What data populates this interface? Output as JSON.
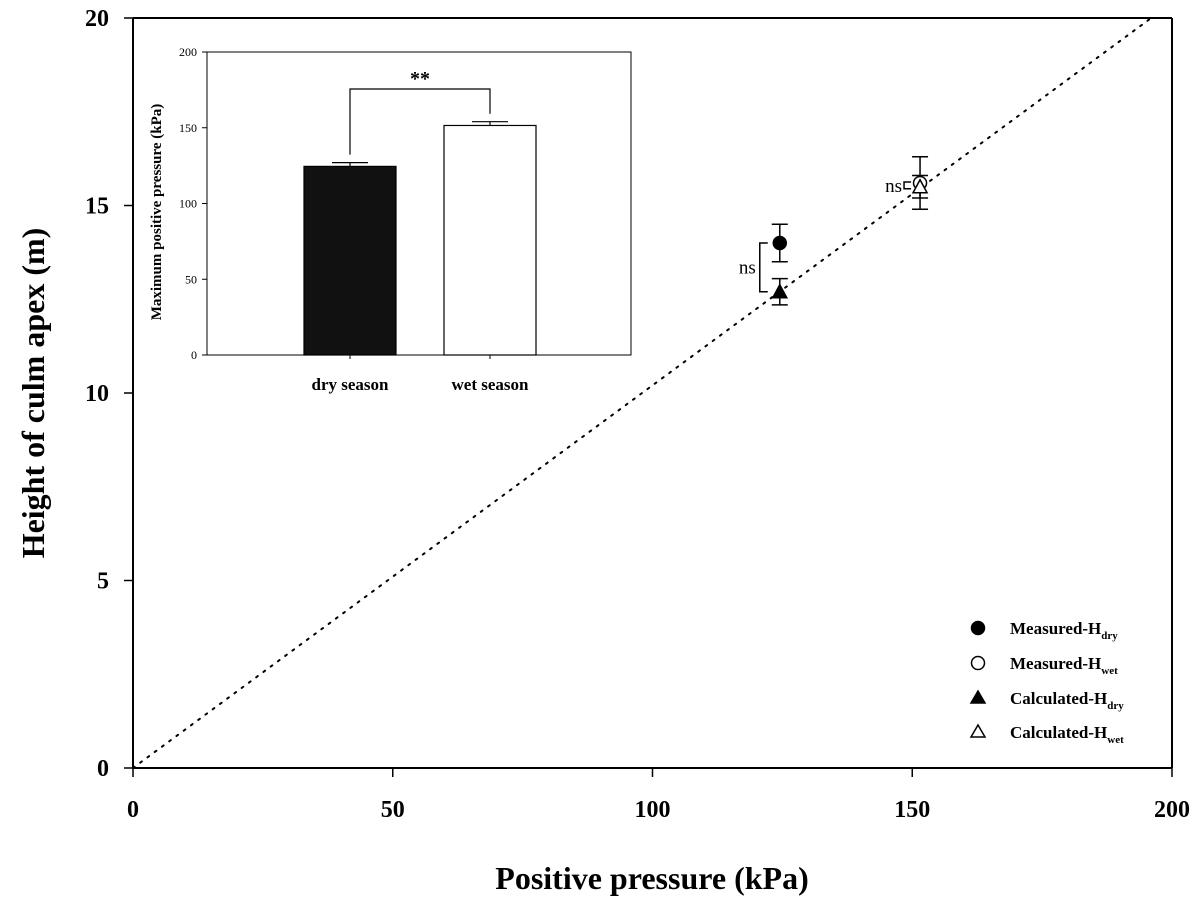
{
  "chart_data": [
    {
      "type": "scatter",
      "title": "",
      "xlabel": "Positive pressure (kPa)",
      "ylabel": "Height of culm apex (m)",
      "xlim": [
        0,
        200
      ],
      "ylim": [
        0,
        20
      ],
      "xticks": [
        "0",
        "50",
        "100",
        "150",
        "200"
      ],
      "yticks": [
        "0",
        "5",
        "10",
        "15",
        "20"
      ],
      "grid": false,
      "legend_position": "bottom-right",
      "reference_line": {
        "style": "dotted",
        "from": [
          0,
          0
        ],
        "to": [
          196,
          20
        ]
      },
      "series": [
        {
          "label": "Measured-H",
          "label_sub": "dry",
          "marker": "filled-circle",
          "points": [
            {
              "x": 124.5,
              "y": 14.0,
              "err": 0.5
            }
          ]
        },
        {
          "label": "Measured-H",
          "label_sub": "wet",
          "marker": "open-circle",
          "points": [
            {
              "x": 151.5,
              "y": 15.6,
              "err": 0.7
            }
          ]
        },
        {
          "label": "Calculated-H",
          "label_sub": "dry",
          "marker": "filled-triangle",
          "points": [
            {
              "x": 124.5,
              "y": 12.7,
              "err": 0.35
            }
          ]
        },
        {
          "label": "Calculated-H",
          "label_sub": "wet",
          "marker": "open-triangle",
          "points": [
            {
              "x": 151.5,
              "y": 15.5,
              "err": 0.3
            }
          ]
        }
      ],
      "annotations": [
        {
          "text": "ns",
          "between": "dry"
        },
        {
          "text": "ns",
          "between": "wet"
        }
      ]
    },
    {
      "type": "bar",
      "title": "",
      "categories": [
        "dry season",
        "wet season"
      ],
      "values": [
        124.5,
        151.5
      ],
      "errors": [
        2.5,
        2.5
      ],
      "colors": [
        "#111111",
        "#ffffff"
      ],
      "xlabel": "",
      "ylabel": "Maximum positive pressure (kPa)",
      "ylim": [
        0,
        200
      ],
      "yticks": [
        "0",
        "50",
        "100",
        "150",
        "200"
      ],
      "significance": "**"
    }
  ]
}
